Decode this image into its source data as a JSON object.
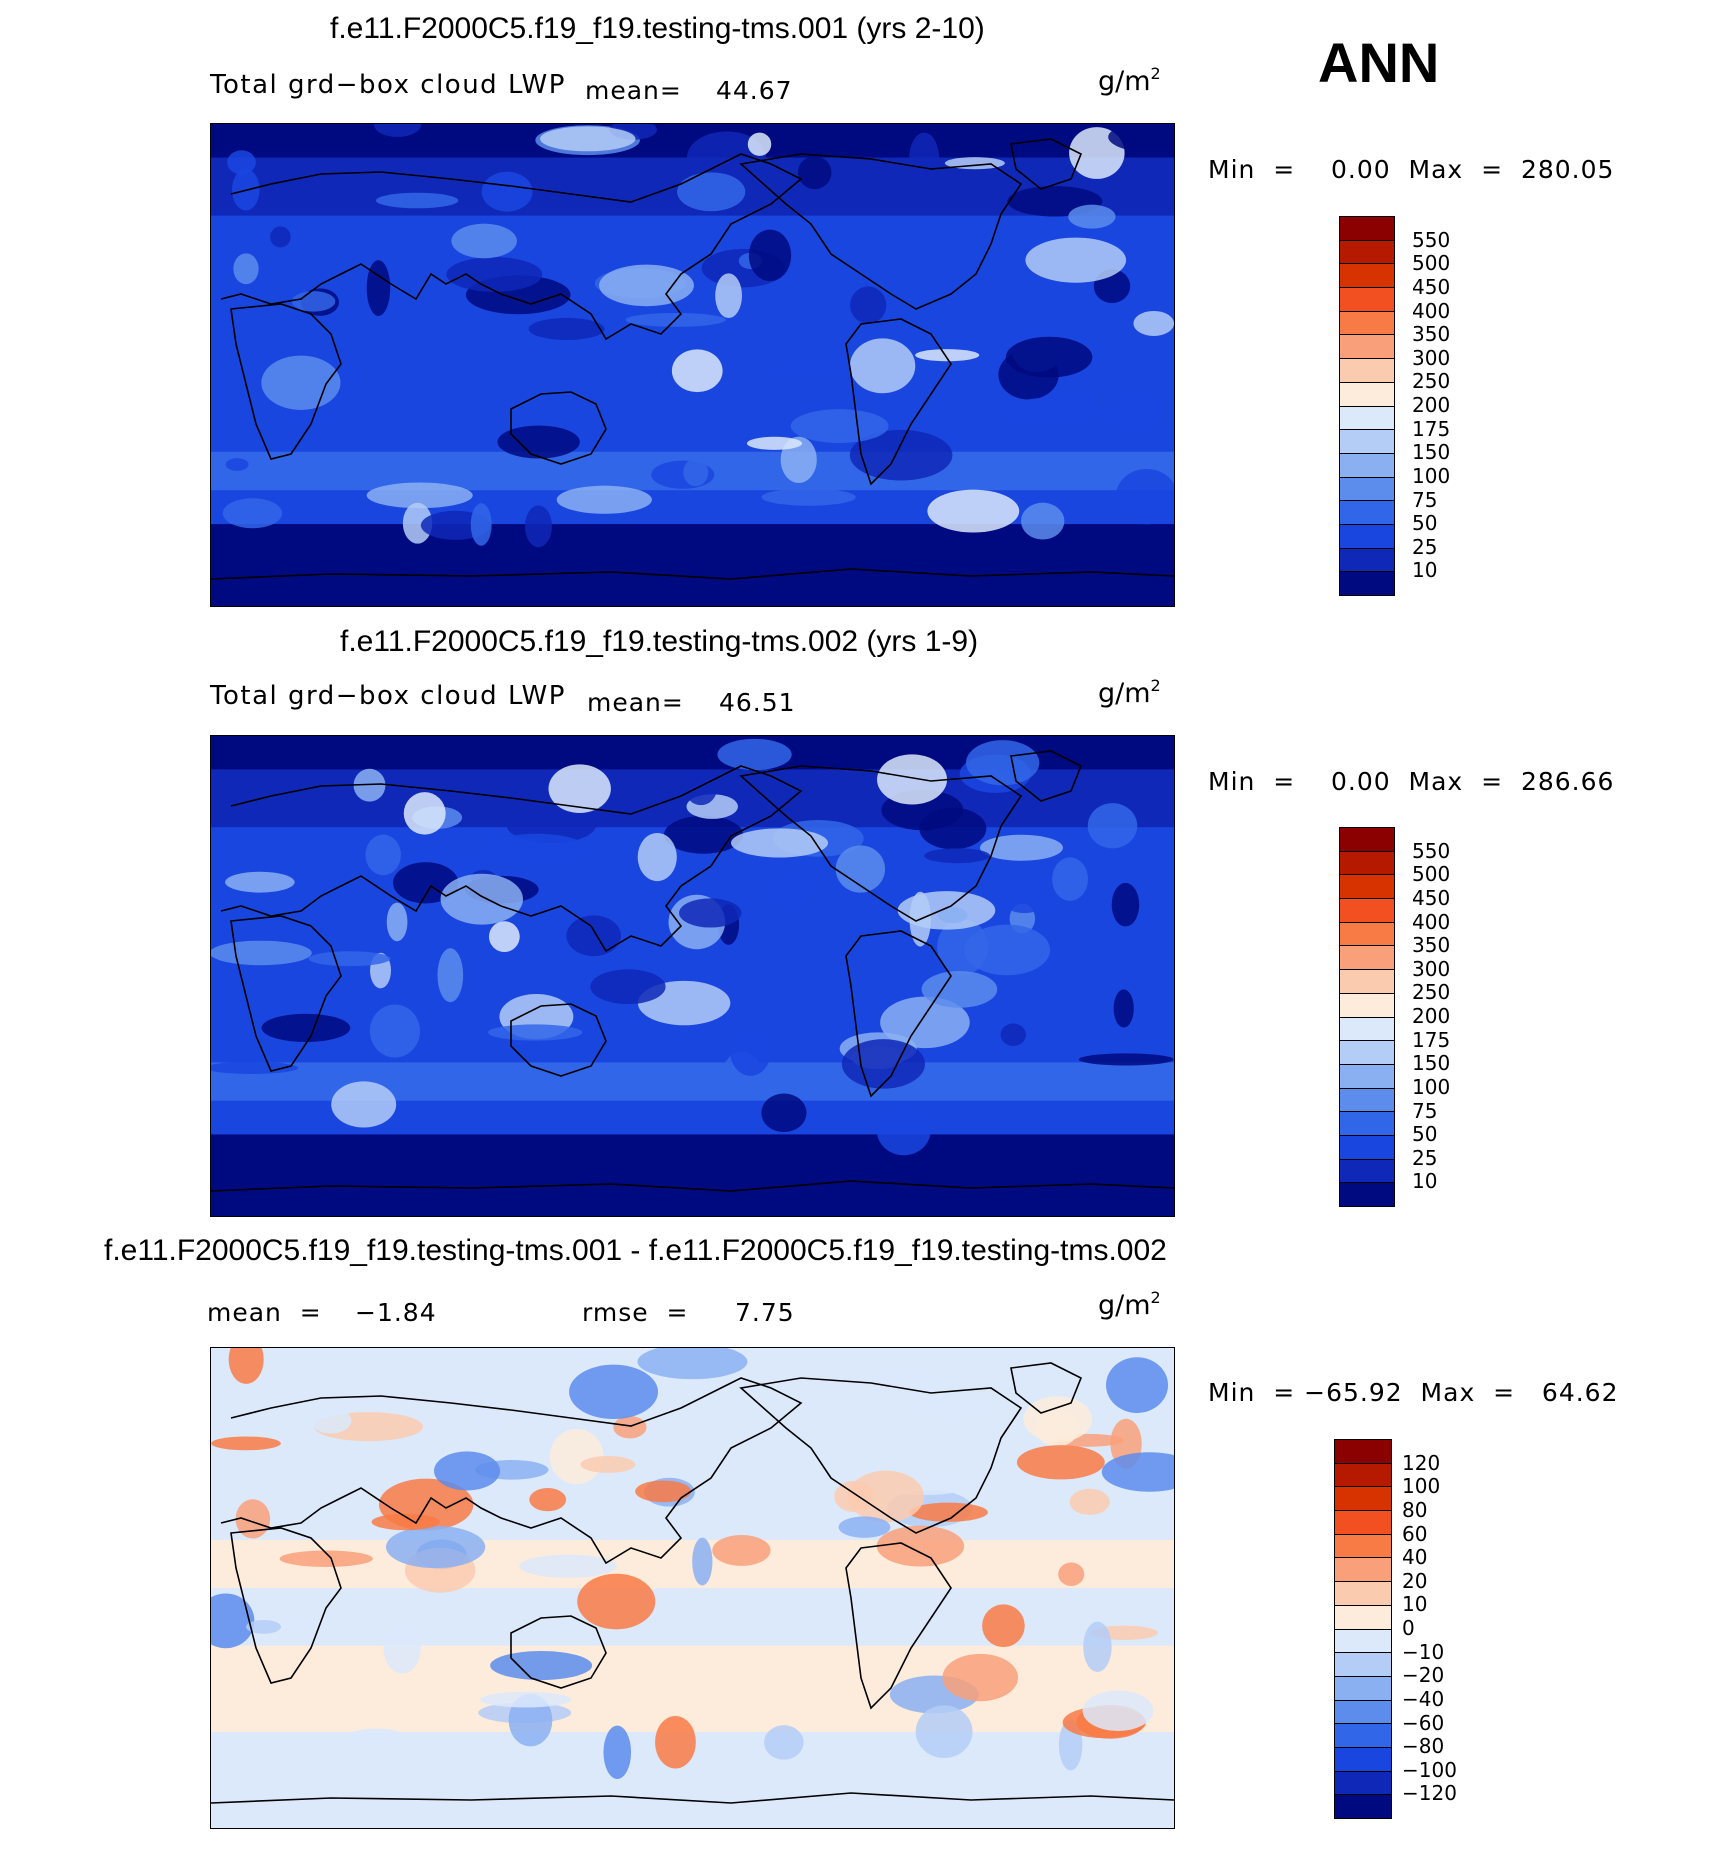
{
  "season": "ANN",
  "panels": [
    {
      "title": "f.e11.F2000C5.f19_f19.testing-tms.001 (yrs 2-10)",
      "variable": "Total grd−box cloud LWP",
      "mean_label": "mean=",
      "mean_value": "44.67",
      "units": "g/m",
      "units_exp": "2",
      "minmax": "Min  =    0.00  Max  =  280.05",
      "colorbar_labels": [
        "550",
        "500",
        "450",
        "400",
        "350",
        "300",
        "250",
        "200",
        "175",
        "150",
        "100",
        "75",
        "50",
        "25",
        "10"
      ],
      "colorbar_colors": [
        "#8b0000",
        "#b51a00",
        "#d73300",
        "#f25020",
        "#f87a45",
        "#f9a07a",
        "#fbcbb0",
        "#fdecdc",
        "#dce9fb",
        "#b4cdf7",
        "#8bb0f2",
        "#5c8cec",
        "#3266e8",
        "#1a46e0",
        "#0f28b8",
        "#000a80"
      ],
      "map_palette": [
        "#000a80",
        "#0f28b8",
        "#1a46e0",
        "#3266e8",
        "#5c8cec",
        "#8bb0f2",
        "#b4cdf7",
        "#dce9fb"
      ]
    },
    {
      "title": "f.e11.F2000C5.f19_f19.testing-tms.002 (yrs 1-9)",
      "variable": "Total grd−box cloud LWP",
      "mean_label": "mean=",
      "mean_value": "46.51",
      "units": "g/m",
      "units_exp": "2",
      "minmax": "Min  =    0.00  Max  =  286.66",
      "colorbar_labels": [
        "550",
        "500",
        "450",
        "400",
        "350",
        "300",
        "250",
        "200",
        "175",
        "150",
        "100",
        "75",
        "50",
        "25",
        "10"
      ],
      "colorbar_colors": [
        "#8b0000",
        "#b51a00",
        "#d73300",
        "#f25020",
        "#f87a45",
        "#f9a07a",
        "#fbcbb0",
        "#fdecdc",
        "#dce9fb",
        "#b4cdf7",
        "#8bb0f2",
        "#5c8cec",
        "#3266e8",
        "#1a46e0",
        "#0f28b8",
        "#000a80"
      ],
      "map_palette": [
        "#000a80",
        "#0f28b8",
        "#1a46e0",
        "#3266e8",
        "#5c8cec",
        "#8bb0f2",
        "#b4cdf7",
        "#dce9fb"
      ]
    },
    {
      "title": "f.e11.F2000C5.f19_f19.testing-tms.001 - f.e11.F2000C5.f19_f19.testing-tms.002",
      "mean_label": "mean  =",
      "mean_value": "−1.84",
      "rmse_label": "rmse  =",
      "rmse_value": "7.75",
      "units": "g/m",
      "units_exp": "2",
      "minmax": "Min  = −65.92  Max  =   64.62",
      "colorbar_labels": [
        "120",
        "100",
        "80",
        "60",
        "40",
        "20",
        "10",
        "0",
        "−10",
        "−20",
        "−40",
        "−60",
        "−80",
        "−100",
        "−120"
      ],
      "colorbar_colors": [
        "#8b0000",
        "#b51a00",
        "#d73300",
        "#f25020",
        "#f87a45",
        "#f9a07a",
        "#fbcbb0",
        "#fdecdc",
        "#dce9fb",
        "#b4cdf7",
        "#8bb0f2",
        "#5c8cec",
        "#3266e8",
        "#1a46e0",
        "#0f28b8",
        "#000a80"
      ],
      "map_palette": [
        "#dce9fb",
        "#fdecdc",
        "#b4cdf7",
        "#fbcbb0",
        "#8bb0f2",
        "#f9a07a",
        "#5c8cec",
        "#f87a45"
      ]
    }
  ]
}
